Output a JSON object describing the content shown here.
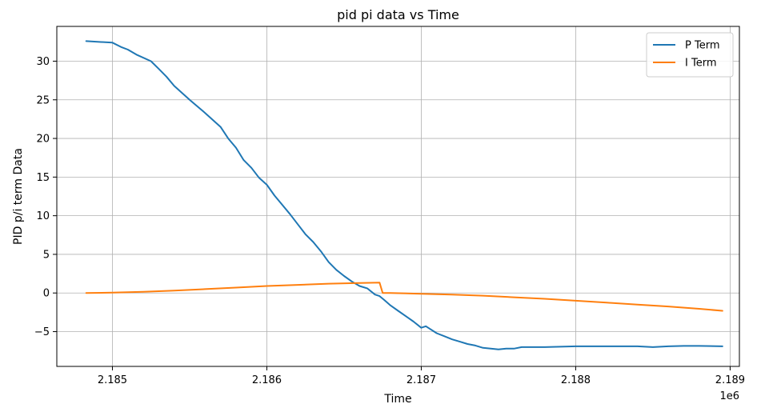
{
  "chart_data": {
    "type": "line",
    "title": "pid pi data vs Time",
    "xlabel": "Time",
    "ylabel": "PID p/i term Data",
    "x_offset_label": "1e6",
    "xlim": [
      2184640,
      2189060
    ],
    "ylim": [
      -9.5,
      34.5
    ],
    "x_ticks": [
      2185000,
      2186000,
      2187000,
      2188000,
      2189000
    ],
    "x_tick_labels": [
      "2.185",
      "2.186",
      "2.187",
      "2.188",
      "2.189"
    ],
    "y_ticks": [
      -5,
      0,
      5,
      10,
      15,
      20,
      25,
      30
    ],
    "y_tick_labels": [
      "−5",
      "0",
      "5",
      "10",
      "15",
      "20",
      "25",
      "30"
    ],
    "grid": true,
    "legend_position": "top-right",
    "series": [
      {
        "name": "P Term",
        "color": "#1f77b4",
        "x": [
          2184830,
          2185000,
          2185060,
          2185100,
          2185160,
          2185250,
          2185300,
          2185350,
          2185400,
          2185500,
          2185600,
          2185700,
          2185750,
          2185800,
          2185850,
          2185900,
          2185950,
          2186000,
          2186050,
          2186100,
          2186150,
          2186200,
          2186250,
          2186300,
          2186350,
          2186400,
          2186450,
          2186500,
          2186550,
          2186600,
          2186650,
          2186700,
          2186730,
          2186760,
          2186800,
          2186850,
          2186900,
          2186950,
          2187000,
          2187030,
          2187060,
          2187100,
          2187150,
          2187200,
          2187250,
          2187300,
          2187350,
          2187400,
          2187450,
          2187500,
          2187550,
          2187600,
          2187650,
          2187700,
          2187750,
          2187800,
          2187900,
          2188000,
          2188100,
          2188200,
          2188300,
          2188400,
          2188500,
          2188600,
          2188700,
          2188800,
          2188950
        ],
        "y": [
          32.6,
          32.4,
          31.8,
          31.5,
          30.8,
          30.0,
          29.0,
          28.0,
          26.8,
          25.0,
          23.3,
          21.5,
          20.0,
          18.8,
          17.2,
          16.2,
          14.9,
          14.0,
          12.6,
          11.4,
          10.2,
          8.9,
          7.6,
          6.6,
          5.4,
          4.0,
          3.0,
          2.2,
          1.5,
          0.9,
          0.6,
          -0.2,
          -0.4,
          -0.9,
          -1.6,
          -2.3,
          -3.0,
          -3.7,
          -4.5,
          -4.3,
          -4.7,
          -5.2,
          -5.6,
          -6.0,
          -6.3,
          -6.6,
          -6.8,
          -7.1,
          -7.2,
          -7.3,
          -7.2,
          -7.2,
          -7.0,
          -7.0,
          -7.0,
          -7.0,
          -6.95,
          -6.9,
          -6.9,
          -6.9,
          -6.9,
          -6.9,
          -7.0,
          -6.9,
          -6.85,
          -6.85,
          -6.9
        ]
      },
      {
        "name": "I Term",
        "color": "#ff7f0e",
        "x": [
          2184830,
          2185000,
          2185200,
          2185400,
          2185600,
          2185800,
          2186000,
          2186200,
          2186400,
          2186600,
          2186730,
          2186750,
          2186800,
          2187000,
          2187200,
          2187400,
          2187600,
          2187800,
          2188000,
          2188200,
          2188400,
          2188600,
          2188800,
          2188950
        ],
        "y": [
          0.0,
          0.05,
          0.15,
          0.3,
          0.5,
          0.7,
          0.9,
          1.05,
          1.2,
          1.3,
          1.35,
          0.0,
          0.0,
          -0.1,
          -0.2,
          -0.35,
          -0.55,
          -0.75,
          -1.0,
          -1.25,
          -1.5,
          -1.75,
          -2.05,
          -2.3
        ]
      }
    ]
  }
}
